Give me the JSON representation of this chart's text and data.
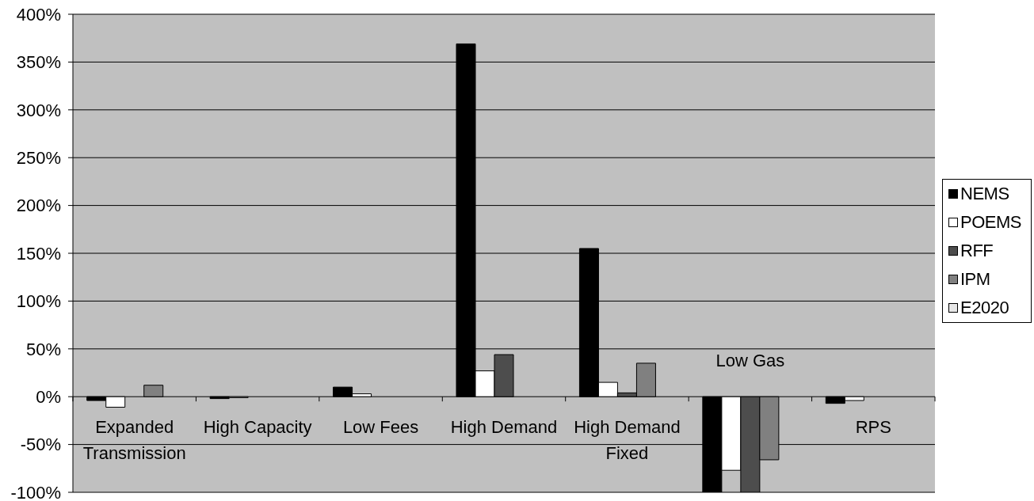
{
  "chart_data": {
    "type": "bar",
    "categories": [
      "Expanded Transmission",
      "High Capacity",
      "Low Fees",
      "High Demand",
      "High Demand Fixed",
      "Low Gas",
      "RPS"
    ],
    "series": [
      {
        "name": "NEMS",
        "color": "#000000",
        "values": [
          -4,
          -2,
          10,
          369,
          155,
          -100,
          -7
        ]
      },
      {
        "name": "POEMS",
        "color": "#ffffff",
        "values": [
          -11,
          -1,
          3,
          27,
          15,
          -77,
          -4
        ]
      },
      {
        "name": "RFF",
        "color": "#4d4d4d",
        "values": [
          null,
          null,
          null,
          44,
          4,
          -100,
          null
        ]
      },
      {
        "name": "IPM",
        "color": "#808080",
        "values": [
          12,
          null,
          null,
          null,
          35,
          -66,
          null
        ]
      },
      {
        "name": "E2020",
        "color": "#e6e6e6",
        "values": [
          null,
          null,
          null,
          null,
          null,
          null,
          null
        ]
      }
    ],
    "ylim": [
      -100,
      400
    ],
    "yticks": [
      {
        "value": -100,
        "label": "-100%"
      },
      {
        "value": -50,
        "label": "-50%"
      },
      {
        "value": 0,
        "label": "0%"
      },
      {
        "value": 50,
        "label": "50%"
      },
      {
        "value": 100,
        "label": "100%"
      },
      {
        "value": 150,
        "label": "150%"
      },
      {
        "value": 200,
        "label": "200%"
      },
      {
        "value": 250,
        "label": "250%"
      },
      {
        "value": 300,
        "label": "300%"
      },
      {
        "value": 350,
        "label": "350%"
      },
      {
        "value": 400,
        "label": "400%"
      }
    ],
    "grid": "y",
    "legend": "right"
  }
}
